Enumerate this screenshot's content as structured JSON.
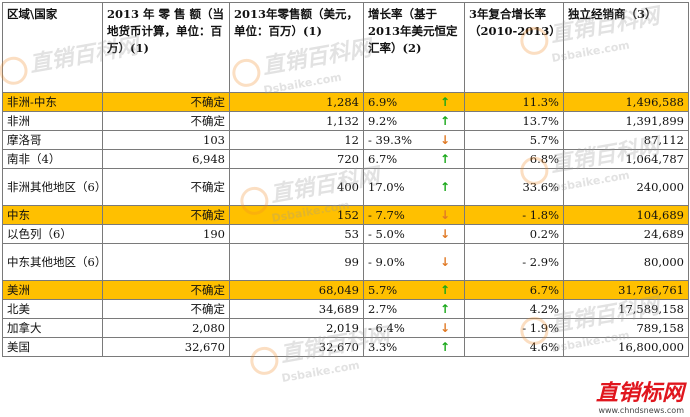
{
  "headers": [
    "区域\\国家",
    "2013 年 零 售 额（当地货币计算，单位：百万）(1)",
    "2013年零售额（美元，单位：百万）(1)",
    "增长率（基于2013年美元恒定汇率）(2)",
    "3年复合增长率（2010-2013）",
    "独立经销商（3）"
  ],
  "colors": {
    "highlight": "#ffc000",
    "up": "#18a818",
    "down": "#e07a26"
  },
  "rows": [
    {
      "region": "非洲-中东",
      "local": "不确定",
      "usd": "1,284",
      "growth": "6.9%",
      "dir": "up",
      "cagr": "11.3%",
      "dist": "1,496,588",
      "hl": true
    },
    {
      "region": "非洲",
      "local": "不确定",
      "usd": "1,132",
      "growth": "9.2%",
      "dir": "up",
      "cagr": "13.7%",
      "dist": "1,391,899",
      "hl": false
    },
    {
      "region": "摩洛哥",
      "local": "103",
      "usd": "12",
      "growth": "- 39.3%",
      "dir": "down",
      "cagr": "5.7%",
      "dist": "87,112",
      "hl": false
    },
    {
      "region": "南非（4）",
      "local": "6,948",
      "usd": "720",
      "growth": "6.7%",
      "dir": "up",
      "cagr": "6.8%",
      "dist": "1,064,787",
      "hl": false
    },
    {
      "region": "非洲其他地区（6）",
      "local": "不确定",
      "usd": "400",
      "growth": "17.0%",
      "dir": "up",
      "cagr": "33.6%",
      "dist": "240,000",
      "hl": false,
      "tall": true
    },
    {
      "region": "中东",
      "local": "不确定",
      "usd": "152",
      "growth": "- 7.7%",
      "dir": "down",
      "cagr": "- 1.8%",
      "dist": "104,689",
      "hl": true
    },
    {
      "region": "以色列（6）",
      "local": "190",
      "usd": "53",
      "growth": "- 5.0%",
      "dir": "down",
      "cagr": "0.2%",
      "dist": "24,689",
      "hl": false
    },
    {
      "region": "中东其他地区（6）",
      "local": "",
      "usd": "99",
      "growth": "- 9.0%",
      "dir": "down",
      "cagr": "- 2.9%",
      "dist": "80,000",
      "hl": false,
      "tall": true
    },
    {
      "region": "美洲",
      "local": "不确定",
      "usd": "68,049",
      "growth": "5.7%",
      "dir": "up",
      "cagr": "6.7%",
      "dist": "31,786,761",
      "hl": true
    },
    {
      "region": "北美",
      "local": "不确定",
      "usd": "34,689",
      "growth": "2.7%",
      "dir": "up",
      "cagr": "4.2%",
      "dist": "17,589,158",
      "hl": false
    },
    {
      "region": "加拿大",
      "local": "2,080",
      "usd": "2,019",
      "growth": "- 6.4%",
      "dir": "down",
      "cagr": "- 1.9%",
      "dist": "789,158",
      "hl": false
    },
    {
      "region": "美国",
      "local": "32,670",
      "usd": "32,670",
      "growth": "3.3%",
      "dir": "up",
      "cagr": "4.6%",
      "dist": "16,800,000",
      "hl": false
    }
  ],
  "watermark": {
    "cn": "直销百科网",
    "en": "Dsbaike.com"
  },
  "brand": {
    "name": "直销标网",
    "url": "www.chndsnews.com"
  }
}
